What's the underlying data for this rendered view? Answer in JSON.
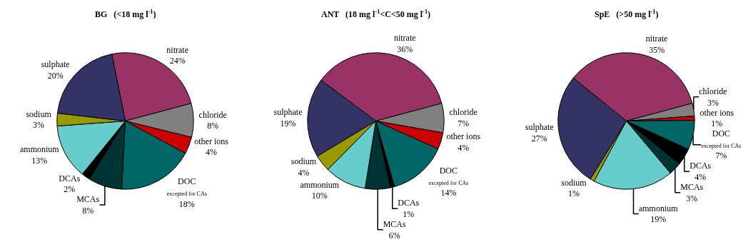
{
  "chart_data": [
    {
      "type": "pie",
      "title": "BG   (<18 mg l$^{-1}$)",
      "categories": [
        "nitrate",
        "chloride",
        "other ions",
        "DOC\nexcepted for CAs",
        "MCAs",
        "DCAs",
        "ammonium",
        "sodium",
        "sulphate"
      ],
      "values": [
        24,
        8,
        4,
        18,
        8,
        2,
        13,
        3,
        20
      ],
      "value_labels": [
        "24%",
        "8%",
        "4%",
        "18%",
        "8%",
        "2%",
        "13%",
        "3%",
        "20%"
      ],
      "colors": [
        "#993366",
        "#808080",
        "#cc0000",
        "#006666",
        "#003333",
        "#000000",
        "#66cccc",
        "#999900",
        "#333366"
      ]
    },
    {
      "type": "pie",
      "title": "ANT   (18 mg l$^{-1}$<C<50 mg l$^{-1}$)",
      "categories": [
        "nitrate",
        "chloride",
        "other ions",
        "DOC\nexcepted for CAs",
        "DCAs",
        "MCAs",
        "ammonium",
        "sodium",
        "sulphate"
      ],
      "values": [
        36,
        7,
        4,
        14,
        1,
        6,
        10,
        4,
        19
      ],
      "value_labels": [
        "36%",
        "7%",
        "4%",
        "14%",
        "1%",
        "6%",
        "10%",
        "4%",
        "19%"
      ],
      "colors": [
        "#993366",
        "#808080",
        "#cc0000",
        "#006666",
        "#000000",
        "#003333",
        "#66cccc",
        "#999900",
        "#333366"
      ]
    },
    {
      "type": "pie",
      "title": "SpE   (>50 mg l$^{-1}$)",
      "categories": [
        "nitrate",
        "chloride",
        "other ions",
        "DOC\nexcepted for CAs",
        "DCAs",
        "MCAs",
        "ammonium",
        "sodium",
        "sulphate"
      ],
      "values": [
        35,
        3,
        1,
        7,
        4,
        3,
        19,
        1,
        27
      ],
      "value_labels": [
        "35%",
        "3%",
        "1%",
        "7%",
        "4%",
        "3%",
        "19%",
        "1%",
        "27%"
      ],
      "colors": [
        "#993366",
        "#808080",
        "#cc0000",
        "#006666",
        "#000000",
        "#003333",
        "#66cccc",
        "#999900",
        "#333366"
      ]
    }
  ]
}
